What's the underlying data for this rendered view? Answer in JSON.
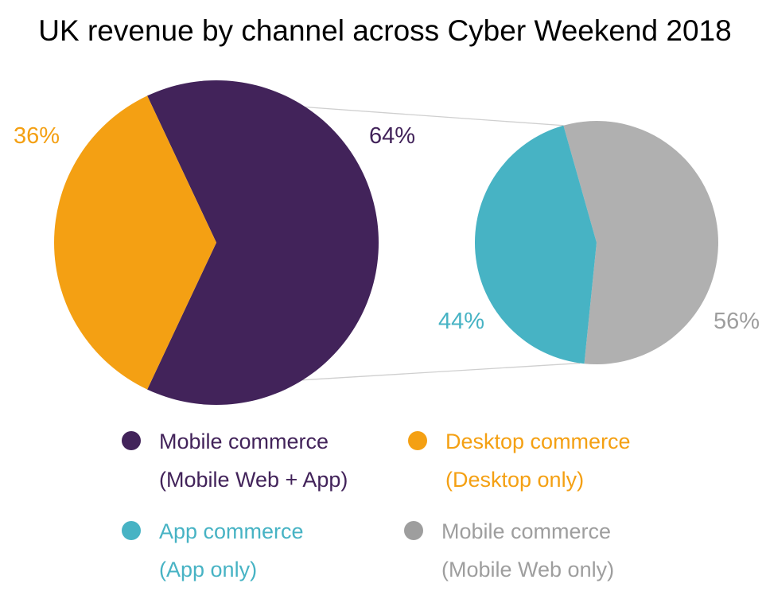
{
  "chart_data": {
    "type": "pie",
    "title": "UK revenue by channel across Cyber Weekend 2018",
    "main_pie": {
      "slices": [
        {
          "key": "mobile",
          "value": 64,
          "label": "64%",
          "color": "#42235a"
        },
        {
          "key": "desktop",
          "value": 36,
          "label": "36%",
          "color": "#f4a013"
        }
      ]
    },
    "detail_pie": {
      "breakdown_of": "mobile",
      "slices": [
        {
          "key": "app",
          "value": 44,
          "label": "44%",
          "color": "#47b3c4"
        },
        {
          "key": "mobile_web",
          "value": 56,
          "label": "56%",
          "color": "#b0b0b0"
        }
      ]
    },
    "legend": [
      {
        "key": "mobile",
        "line1": "Mobile commerce",
        "line2": "(Mobile Web + App)",
        "color": "#42235a",
        "text_color": "#42235a"
      },
      {
        "key": "desktop",
        "line1": "Desktop commerce",
        "line2": "(Desktop only)",
        "color": "#f4a013",
        "text_color": "#f4a013"
      },
      {
        "key": "app",
        "line1": "App commerce",
        "line2": "(App only)",
        "color": "#47b3c4",
        "text_color": "#47b3c4"
      },
      {
        "key": "mobile_web",
        "line1": "Mobile commerce",
        "line2": "(Mobile Web only)",
        "color": "#9e9e9e",
        "text_color": "#9e9e9e"
      }
    ],
    "connector_color": "#cfcfcf"
  }
}
